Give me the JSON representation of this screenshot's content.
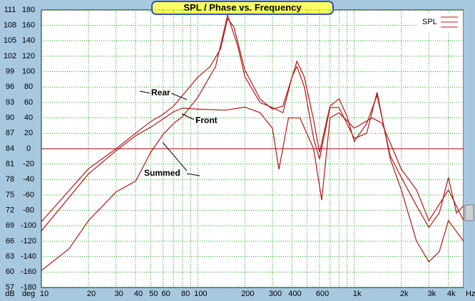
{
  "chart_data": {
    "type": "line",
    "title": "SPL / Phase vs. Frequency",
    "x_label": "Hz",
    "y_label": "dB",
    "y2_label": "deg",
    "legend_label": "SPL",
    "log_x": true,
    "grid": true,
    "xlim": [
      10,
      5000
    ],
    "xticks": [
      10,
      20,
      30,
      40,
      50,
      60,
      80,
      100,
      200,
      300,
      400,
      600,
      {
        "value": 1000,
        "label": "1k"
      },
      {
        "value": 2000,
        "label": "2k"
      },
      {
        "value": 3000,
        "label": "3k"
      },
      {
        "value": 4000,
        "label": "4k"
      }
    ],
    "x_minor_grid": [
      70,
      90,
      500,
      700,
      800,
      900
    ],
    "ylim": [
      57,
      111
    ],
    "yticks": [
      57,
      60,
      63,
      66,
      69,
      72,
      75,
      78,
      81,
      84,
      87,
      90,
      93,
      96,
      99,
      102,
      105,
      108,
      111
    ],
    "y2lim": [
      -180,
      180
    ],
    "y2ticks": [
      -180,
      -160,
      -140,
      -120,
      -100,
      -80,
      -60,
      -40,
      -20,
      0,
      20,
      40,
      60,
      80,
      100,
      120,
      140,
      160,
      180
    ],
    "hline_y2": 0,
    "series": [
      {
        "name": "Rear",
        "color": "#b01818",
        "x": [
          10,
          20,
          30,
          40,
          50,
          60,
          70,
          80,
          100,
          120,
          140,
          155,
          170,
          200,
          250,
          300,
          350,
          400,
          430,
          480,
          550,
          600,
          700,
          800,
          900,
          1000,
          1200,
          1400,
          1700,
          2000,
          2500,
          3000,
          3500,
          4000,
          4500,
          5000
        ],
        "values": [
          69.8,
          80.1,
          84,
          87,
          89.3,
          90.7,
          92.3,
          94.4,
          97.9,
          100,
          103.5,
          109.3,
          107.7,
          99.3,
          93.7,
          91.7,
          92.3,
          97.9,
          101,
          97.9,
          89.6,
          83.3,
          92.3,
          93.7,
          90.3,
          85.4,
          88.9,
          94.4,
          82.6,
          78.4,
          72.9,
          68.7,
          71.5,
          78.4,
          71.5,
          72.9
        ]
      },
      {
        "name": "Front",
        "color": "#b01818",
        "x": [
          10,
          20,
          30,
          40,
          50,
          60,
          70,
          80,
          100,
          150,
          200,
          250,
          300,
          330,
          380,
          450,
          550,
          620,
          700,
          800,
          1000,
          1300,
          1500,
          2000,
          2500,
          3000,
          4000,
          5000
        ],
        "values": [
          68,
          79.1,
          83.6,
          86.5,
          88.2,
          89.8,
          91.2,
          91.9,
          91.7,
          91.5,
          92.1,
          91,
          88,
          80,
          90,
          90,
          84,
          74,
          90,
          91,
          88,
          90,
          89,
          80,
          76,
          70,
          76,
          70
        ]
      },
      {
        "name": "Summed",
        "color": "#b01818",
        "x": [
          10,
          15,
          20,
          30,
          40,
          50,
          60,
          70,
          80,
          100,
          130,
          155,
          180,
          200,
          250,
          300,
          350,
          400,
          430,
          480,
          550,
          600,
          700,
          800,
          1000,
          1200,
          1400,
          1700,
          2000,
          2500,
          3000,
          3500,
          4000,
          5000
        ],
        "values": [
          60.3,
          64.5,
          70,
          75.6,
          77.7,
          83.3,
          86.8,
          88.9,
          90.3,
          94,
          100,
          110,
          104,
          98,
          93,
          92,
          91,
          98,
          100,
          96,
          86,
          82,
          92,
          92,
          86,
          87,
          95,
          82,
          76,
          66,
          62,
          64,
          70,
          66
        ]
      }
    ],
    "annotations": [
      "Rear",
      "Front",
      "Summed"
    ]
  }
}
